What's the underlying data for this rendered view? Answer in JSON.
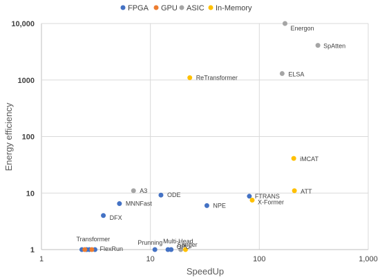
{
  "chart_data": {
    "type": "scatter",
    "xlabel": "SpeedUp",
    "ylabel": "Energy efficiency",
    "x_scale": "log",
    "y_scale": "log",
    "xlim": [
      1,
      1000
    ],
    "ylim": [
      1,
      10000
    ],
    "grid": true,
    "legend_position": "top",
    "x_tick_labels": [
      "1",
      "10",
      "100",
      "1,000"
    ],
    "y_tick_labels": [
      "1",
      "10",
      "100",
      "1000",
      "10,000"
    ],
    "series": [
      {
        "name": "FPGA",
        "color": "#4472c4",
        "points": [
          {
            "label": "Transformer",
            "x": 2.35,
            "y": 1
          },
          {
            "label": "",
            "x": 2.6,
            "y": 1
          },
          {
            "label": "",
            "x": 2.75,
            "y": 1
          },
          {
            "label": "FlexRun",
            "x": 3.1,
            "y": 1
          },
          {
            "label": "DFX",
            "x": 3.7,
            "y": 4.0
          },
          {
            "label": "MNNFast",
            "x": 5.2,
            "y": 6.5
          },
          {
            "label": "Prunning",
            "x": 11,
            "y": 1
          },
          {
            "label": "Multi-Head",
            "x": 14.5,
            "y": 1
          },
          {
            "label": "OPU",
            "x": 15.5,
            "y": 1
          },
          {
            "label": "ODE",
            "x": 12.5,
            "y": 9.2
          },
          {
            "label": "NPE",
            "x": 33,
            "y": 6.0
          },
          {
            "label": "FTRANS",
            "x": 81,
            "y": 8.8
          }
        ]
      },
      {
        "name": "GPU",
        "color": "#ed7d31",
        "points": [
          {
            "label": "",
            "x": 2.5,
            "y": 1
          },
          {
            "label": "",
            "x": 2.9,
            "y": 1
          }
        ]
      },
      {
        "name": "ASIC",
        "color": "#a5a5a5",
        "points": [
          {
            "label": "A3",
            "x": 7,
            "y": 11
          },
          {
            "label": "Sanger",
            "x": 19,
            "y": 1
          },
          {
            "label": "Energon",
            "x": 172,
            "y": 10000
          },
          {
            "label": "SpAtten",
            "x": 345,
            "y": 4100
          },
          {
            "label": "ELSA",
            "x": 162,
            "y": 1300
          }
        ]
      },
      {
        "name": "In-Memory",
        "color": "#ffc000",
        "points": [
          {
            "label": "ReTransformer",
            "x": 23,
            "y": 1100
          },
          {
            "label": "X-Former",
            "x": 86,
            "y": 7.5
          },
          {
            "label": "iMCAT",
            "x": 207,
            "y": 41
          },
          {
            "label": "ATT",
            "x": 210,
            "y": 11
          },
          {
            "label": "",
            "x": 21,
            "y": 1
          }
        ]
      }
    ]
  }
}
